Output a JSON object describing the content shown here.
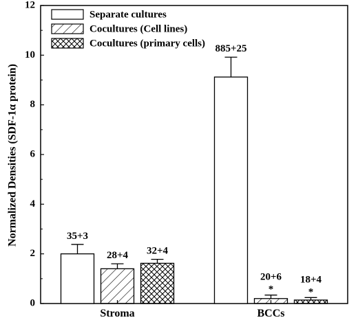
{
  "chart_data": {
    "type": "bar",
    "ylabel": "Normalized Densities (SDF-1α protein)",
    "xlabel": "",
    "ylim": [
      0,
      12
    ],
    "yticks": [
      0,
      2,
      4,
      6,
      8,
      10,
      12
    ],
    "categories": [
      "Stroma",
      "BCCs"
    ],
    "legend_position": "top-left",
    "series": [
      {
        "name": "Separate cultures",
        "pattern": "none",
        "values": [
          2.0,
          9.12
        ],
        "errors": [
          0.38,
          0.8
        ],
        "labels": [
          "35+3",
          "885+25"
        ],
        "significance": [
          "",
          ""
        ]
      },
      {
        "name": "Cocultures (Cell lines)",
        "pattern": "diagonal",
        "values": [
          1.4,
          0.2
        ],
        "errors": [
          0.2,
          0.14
        ],
        "labels": [
          "28+4",
          "20+6"
        ],
        "significance": [
          "",
          "*"
        ]
      },
      {
        "name": "Cocultures (primary cells)",
        "pattern": "crosshatch",
        "values": [
          1.62,
          0.14
        ],
        "errors": [
          0.16,
          0.1
        ],
        "labels": [
          "32+4",
          "18+4"
        ],
        "significance": [
          "",
          "*"
        ]
      }
    ]
  }
}
